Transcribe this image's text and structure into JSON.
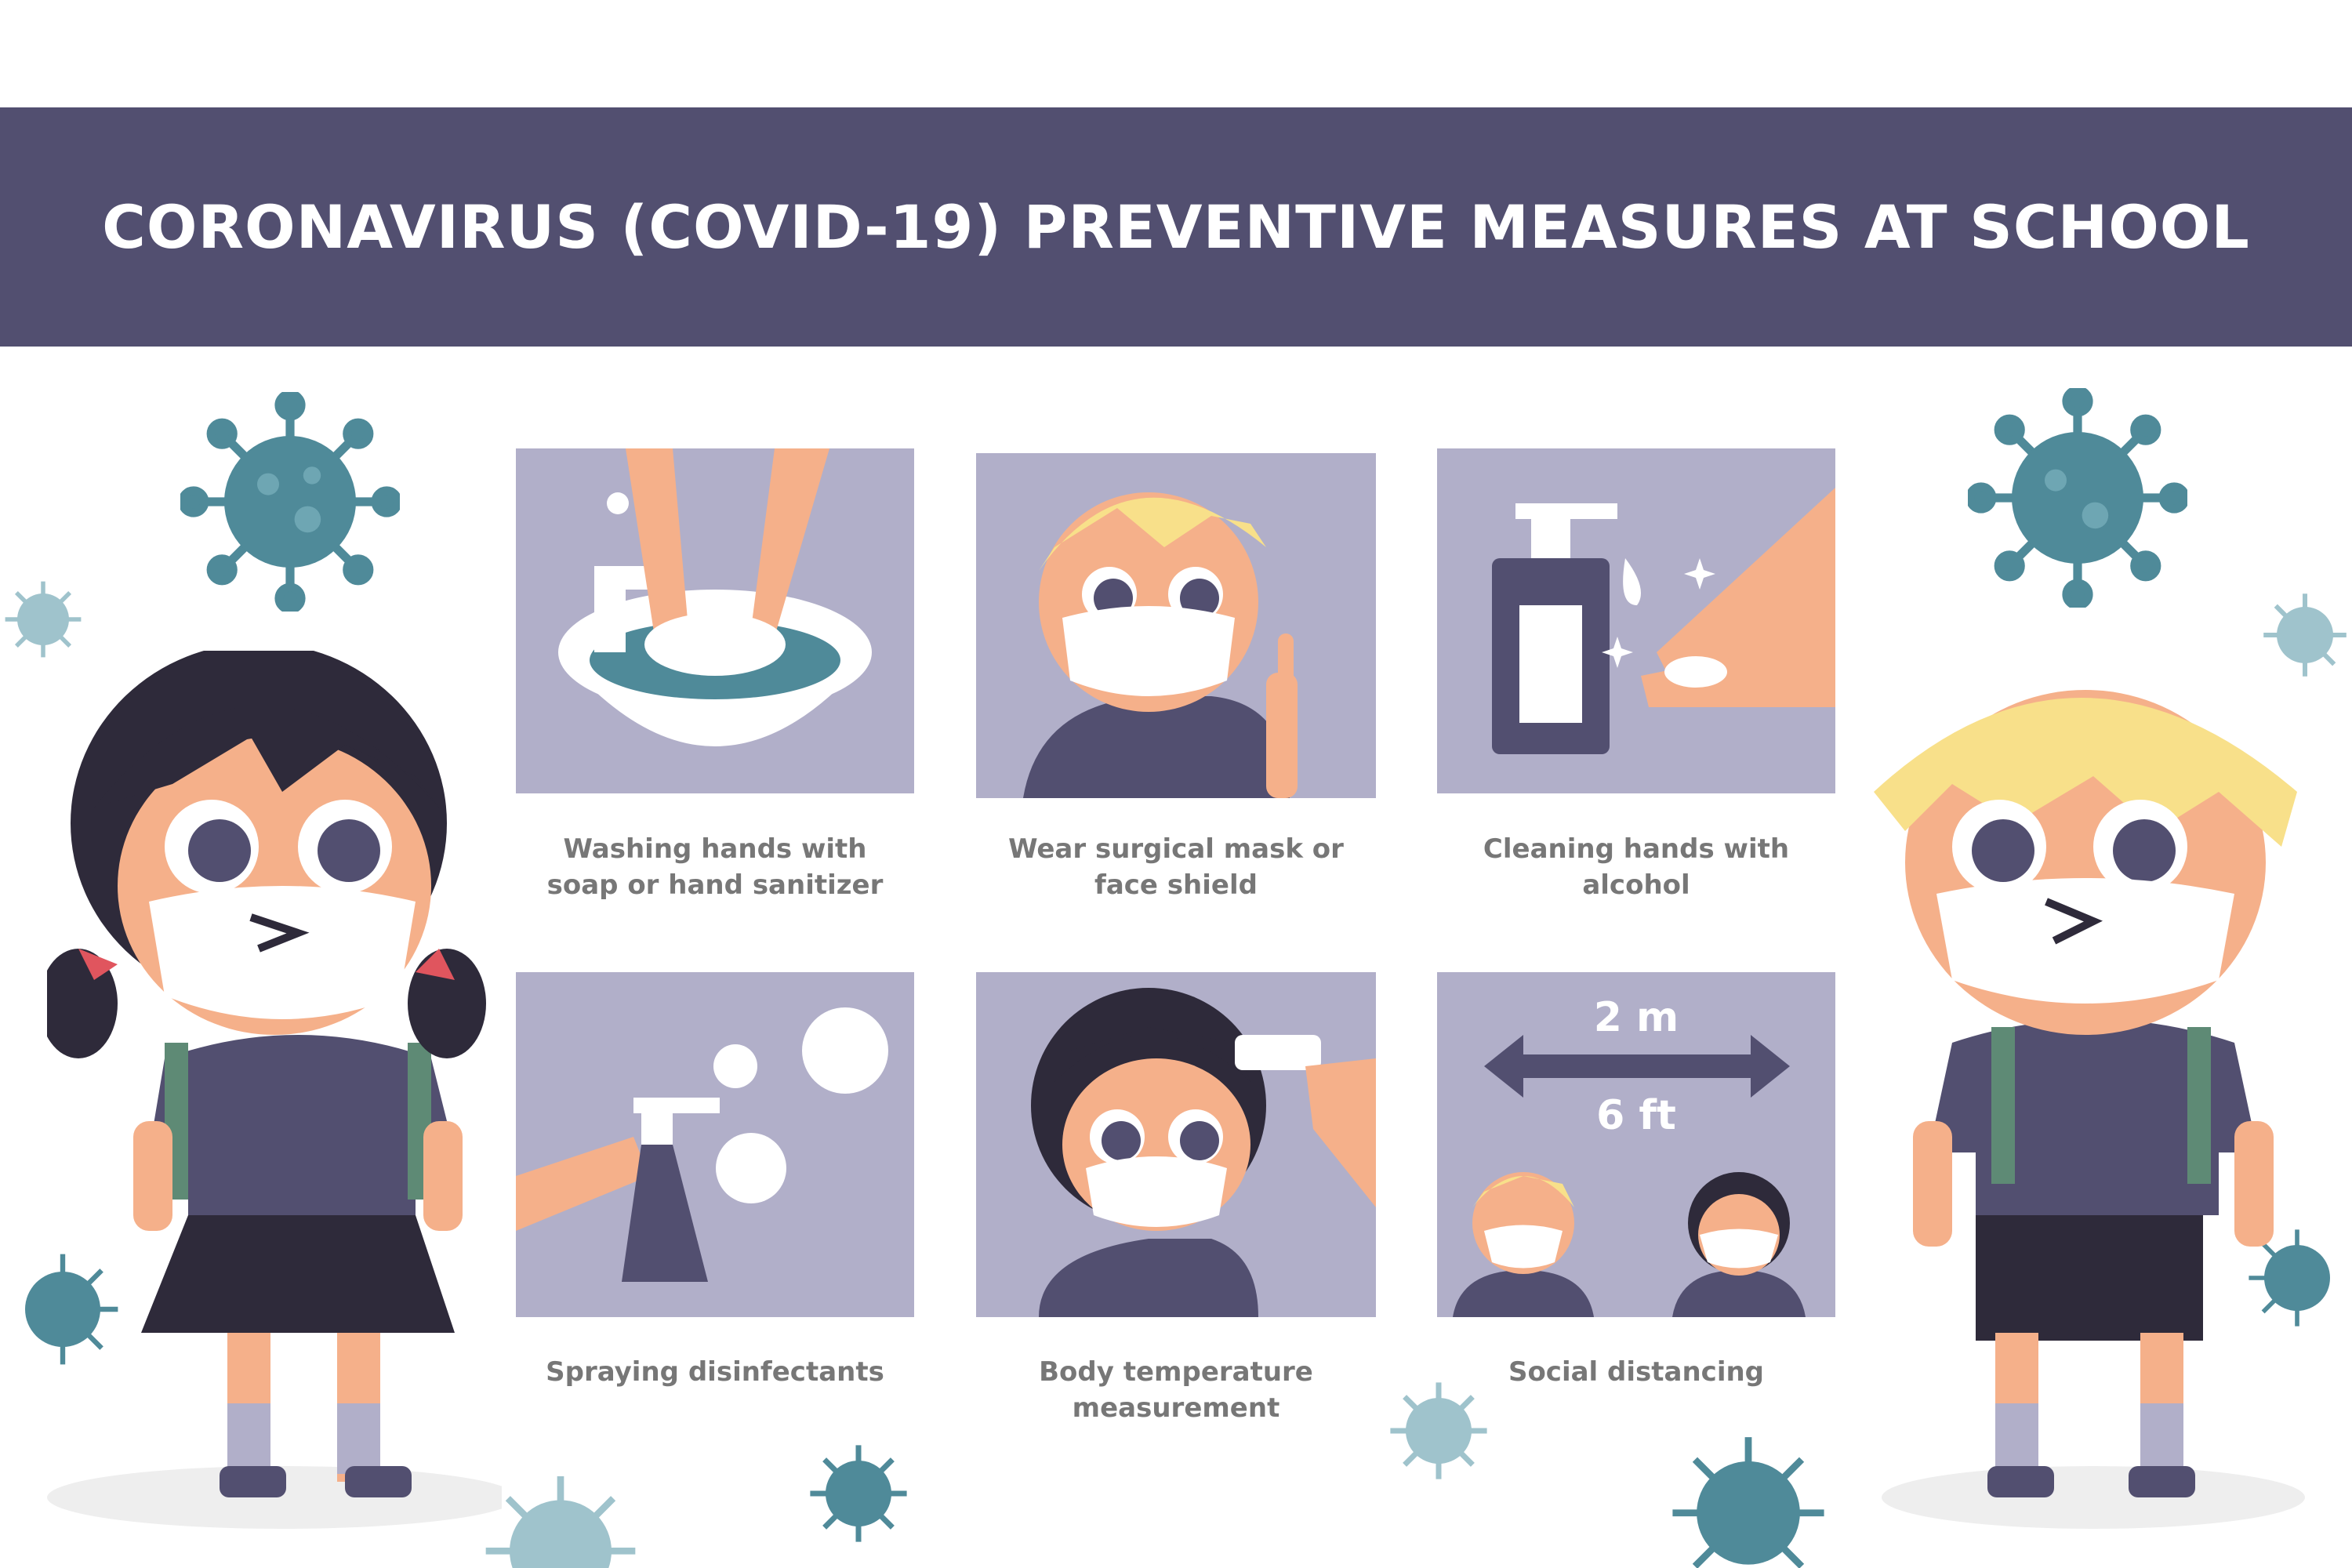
{
  "banner": {
    "title": "CORONAVIRUS (COVID-19) PREVENTIVE MEASURES AT SCHOOL"
  },
  "measures": [
    {
      "icon": "hand-washing-icon",
      "caption_line1": "Washing hands with",
      "caption_line2": "soap or hand sanitizer"
    },
    {
      "icon": "face-mask-icon",
      "caption_line1": "Wear surgical mask or",
      "caption_line2": "face shield"
    },
    {
      "icon": "alcohol-sanitizer-icon",
      "caption_line1": "Cleaning hands with",
      "caption_line2": "alcohol"
    },
    {
      "icon": "spray-bottle-icon",
      "caption_line1": "Spraying disinfectants",
      "caption_line2": ""
    },
    {
      "icon": "thermometer-icon",
      "caption_line1": "Body temperature",
      "caption_line2": "measurement"
    },
    {
      "icon": "social-distance-icon",
      "caption_line1": "Social distancing",
      "caption_line2": ""
    }
  ],
  "distance": {
    "metric": "2 m",
    "imperial": "6 ft"
  },
  "colors": {
    "banner": "#524f70",
    "panel": "#b1afc9",
    "virus": "#4f8a99",
    "virus_light": "#9fc3cc",
    "skin": "#f5b08a",
    "shirt": "#524f70"
  }
}
